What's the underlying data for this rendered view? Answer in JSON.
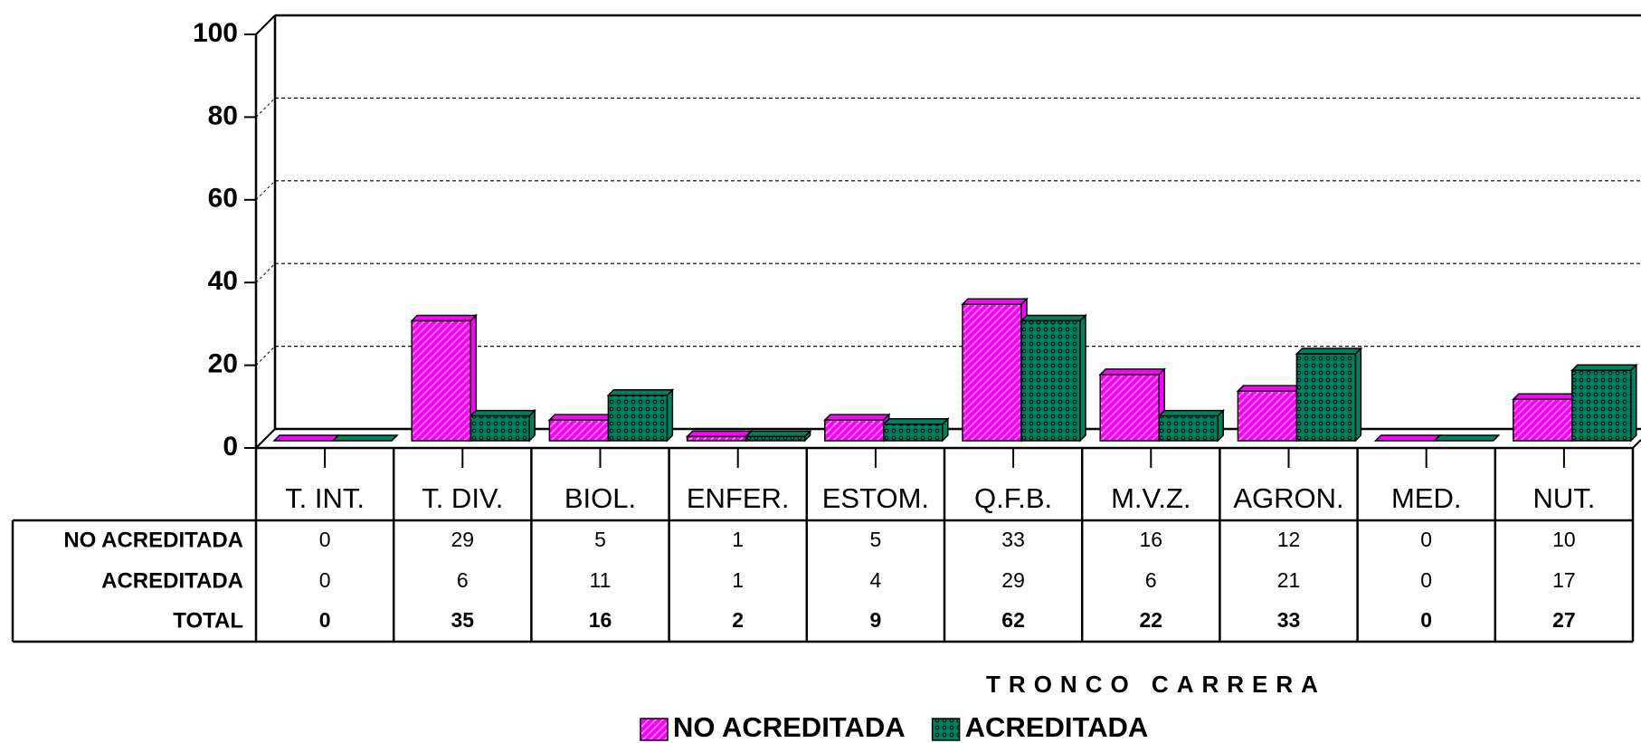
{
  "chart_data": {
    "type": "bar3d_table",
    "categories": [
      "T. INT.",
      "T. DIV.",
      "BIOL.",
      "ENFER.",
      "ESTOM.",
      "Q.F.B.",
      "M.V.Z.",
      "AGRON.",
      "MED.",
      "NUT."
    ],
    "series": [
      {
        "name": "NO ACREDITADA",
        "color": "#ff00ff",
        "values": [
          0,
          29,
          5,
          1,
          5,
          33,
          16,
          12,
          0,
          10
        ]
      },
      {
        "name": "ACREDITADA",
        "color": "#008060",
        "values": [
          0,
          6,
          11,
          1,
          4,
          29,
          6,
          21,
          0,
          17
        ]
      }
    ],
    "total_label": "TOTAL",
    "totals": [
      0,
      35,
      16,
      2,
      9,
      62,
      22,
      33,
      0,
      27
    ],
    "x_label": "TRONCO CARRERA",
    "ylim": [
      0,
      100
    ],
    "yticks": [
      0,
      20,
      40,
      60,
      80,
      100
    ],
    "grid": true
  }
}
